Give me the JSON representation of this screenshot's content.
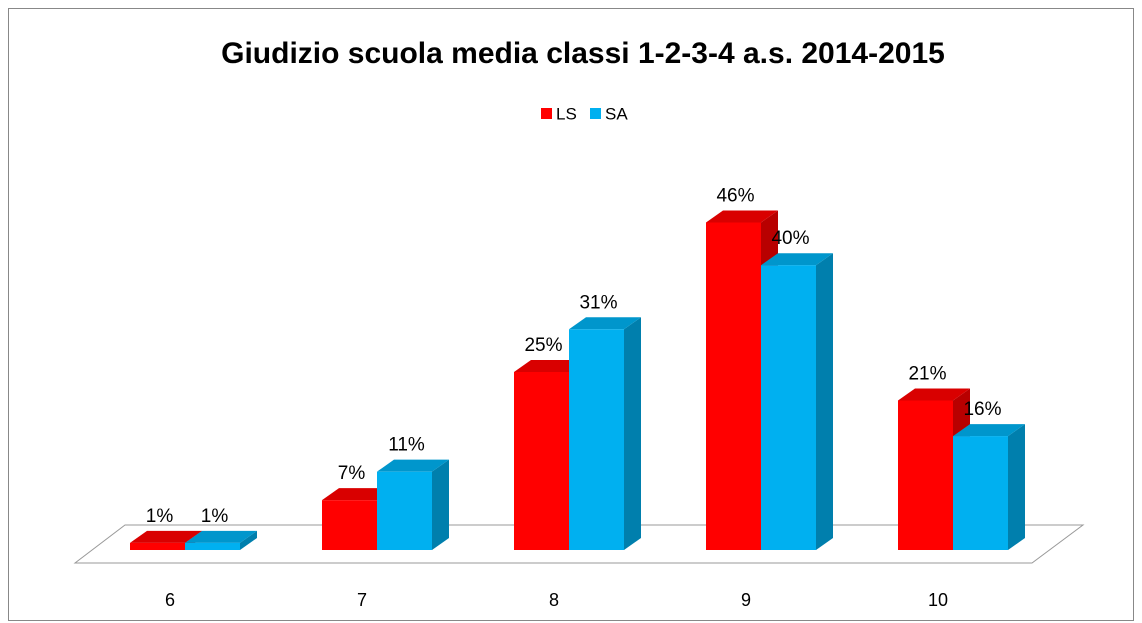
{
  "chart_data": {
    "type": "bar3d",
    "title": "Giudizio scuola media classi 1-2-3-4 a.s. 2014-2015",
    "categories": [
      "6",
      "7",
      "8",
      "9",
      "10"
    ],
    "series": [
      {
        "name": "LS",
        "color": "#ff0000",
        "values": [
          1,
          7,
          25,
          46,
          21
        ],
        "value_labels": [
          "1%",
          "7%",
          "25%",
          "46%",
          "21%"
        ]
      },
      {
        "name": "SA",
        "color": "#00b0f0",
        "values": [
          1,
          11,
          31,
          40,
          16
        ],
        "value_labels": [
          "1%",
          "11%",
          "31%",
          "40%",
          "16%"
        ]
      }
    ],
    "legend": "top"
  }
}
